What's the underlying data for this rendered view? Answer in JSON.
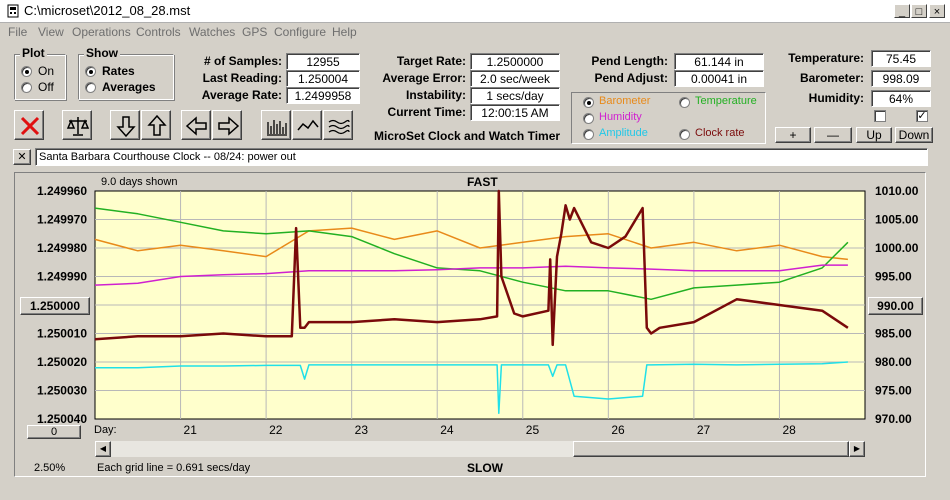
{
  "window": {
    "title": "C:\\microset\\2012_08_28.mst"
  },
  "menu": [
    "File",
    "View",
    "Operations",
    "Controls",
    "Watches",
    "GPS",
    "Configure",
    "Help"
  ],
  "plot_group": {
    "title": "Plot",
    "on": "On",
    "off": "Off",
    "selected": "On"
  },
  "show_group": {
    "title": "Show",
    "rates": "Rates",
    "averages": "Averages",
    "selected": "Rates"
  },
  "stats": {
    "samples_label": "# of Samples:",
    "samples": "12955",
    "last_label": "Last Reading:",
    "last": "1.250004",
    "avg_label": "Average Rate:",
    "avg": "1.2499958",
    "target_label": "Target Rate:",
    "target": "1.2500000",
    "avgerr_label": "Average Error:",
    "avgerr": "2.0 sec/week",
    "instab_label": "Instability:",
    "instab": "1 secs/day",
    "time_label": "Current Time:",
    "time": "12:00:15 AM",
    "pendlen_label": "Pend Length:",
    "pendlen": "61.144 in",
    "pendadj_label": "Pend Adjust:",
    "pendadj": "0.00041 in",
    "temp_label": "Temperature:",
    "temp": "75.45",
    "baro_label": "Barometer:",
    "baro": "998.09",
    "hum_label": "Humidity:",
    "hum": "64%"
  },
  "app_caption": "MicroSet Clock and Watch Timer",
  "channels": {
    "barometer": "Barometer",
    "temperature": "Temperature",
    "humidity": "Humidity",
    "amplitude": "Amplitude",
    "clock_rate": "Clock rate",
    "selected": "Barometer"
  },
  "side_buttons": {
    "plus": "+",
    "minus": "—",
    "up": "Up",
    "down": "Down"
  },
  "note": "Santa Barbara Courthouse Clock  --  08/24: power out",
  "chart_header": {
    "days_shown": "9.0 days shown",
    "top": "FAST",
    "bottom": "SLOW",
    "center_button": "1.250000",
    "right_button": "990.00",
    "scroll_button": "0",
    "percent": "2.50%",
    "grid_note": "Each grid line = 0.691 secs/day",
    "day_label": "Day:"
  },
  "icons": [
    "close-x-icon",
    "balance-scale-icon",
    "arrow-down-icon",
    "arrow-up-icon",
    "arrow-left-icon",
    "arrow-right-icon",
    "bar-chart-icon",
    "wave-icon",
    "multi-wave-icon"
  ],
  "colors": {
    "rate": "#7a0a0a",
    "barometer": "#e88a1a",
    "temperature": "#22b022",
    "humidity": "#d020d0",
    "amplitude": "#20e0e8",
    "plot_bg": "#ffffcc"
  },
  "chart_data": {
    "type": "line",
    "title": "",
    "ylabel_left_ticks": [
      "1.249960",
      "1.249970",
      "1.249980",
      "1.249990",
      "1.250000",
      "1.250010",
      "1.250020",
      "1.250030",
      "1.250040"
    ],
    "ylabel_right_ticks": [
      "1010.00",
      "1005.00",
      "1000.00",
      "995.00",
      "990.00",
      "985.00",
      "980.00",
      "975.00",
      "970.00"
    ],
    "x_ticks": [
      "21",
      "22",
      "23",
      "24",
      "25",
      "26",
      "27",
      "28"
    ],
    "xlim": [
      20.0,
      29.0
    ],
    "ylim_left": [
      1.24996,
      1.25004
    ],
    "ylim_right": [
      970,
      1010
    ],
    "series": [
      {
        "name": "Barometer",
        "color": "#e88a1a",
        "x": [
          20.0,
          20.5,
          21.0,
          21.5,
          22.0,
          22.5,
          23.0,
          23.5,
          24.0,
          24.5,
          25.0,
          25.5,
          26.0,
          26.5,
          27.0,
          27.5,
          28.0,
          28.5,
          28.8
        ],
        "y": [
          1001.5,
          999.5,
          1000.5,
          999.5,
          998.5,
          1003,
          1003.5,
          1001.5,
          1003,
          1000,
          1001,
          1002,
          1002.5,
          1000,
          1001,
          999.5,
          1000.5,
          998.5,
          998
        ]
      },
      {
        "name": "Temperature",
        "color": "#22b022",
        "x": [
          20.0,
          20.5,
          21.0,
          21.5,
          22.0,
          22.5,
          23.0,
          23.5,
          24.0,
          24.5,
          25.0,
          25.5,
          26.0,
          26.5,
          27.0,
          27.5,
          28.0,
          28.5,
          28.8
        ],
        "y": [
          1007,
          1006,
          1004.5,
          1003,
          1002.5,
          1003,
          1002,
          999,
          996.5,
          996,
          994,
          992.5,
          992.5,
          991,
          993,
          993.5,
          994,
          996.5,
          1001
        ]
      },
      {
        "name": "Humidity",
        "color": "#d020d0",
        "x": [
          20.0,
          20.5,
          21.0,
          21.5,
          22.0,
          22.5,
          23.0,
          23.5,
          24.0,
          24.5,
          25.0,
          25.5,
          26.0,
          26.5,
          27.0,
          27.5,
          28.0,
          28.5,
          28.8
        ],
        "y": [
          993.5,
          993.8,
          995,
          995.3,
          995.5,
          996,
          996,
          996,
          996.2,
          996.5,
          996.5,
          996.8,
          996.5,
          996.3,
          996,
          996,
          996,
          997,
          997
        ]
      },
      {
        "name": "Amplitude",
        "color": "#20e0e8",
        "x": [
          20.0,
          20.5,
          21.0,
          21.5,
          22.0,
          22.4,
          22.45,
          22.5,
          23.0,
          23.5,
          24.0,
          24.5,
          24.7,
          24.72,
          24.75,
          25.0,
          25.3,
          25.35,
          25.4,
          25.5,
          25.6,
          26.0,
          26.4,
          26.45,
          26.5,
          27.0,
          27.5,
          28.0,
          28.5,
          28.8
        ],
        "y": [
          979,
          979,
          979.3,
          979.3,
          979.4,
          979.4,
          977,
          979.5,
          979.5,
          979.5,
          979.5,
          979.5,
          979.5,
          971,
          979.5,
          979.5,
          979.5,
          977.5,
          979.5,
          979.5,
          974,
          973.5,
          974,
          979.5,
          979.5,
          979.6,
          979.5,
          979.6,
          979.7,
          980
        ]
      },
      {
        "name": "Clock rate",
        "color": "#7a0a0a",
        "x": [
          20.0,
          20.5,
          21.0,
          21.5,
          22.0,
          22.3,
          22.35,
          22.4,
          22.45,
          22.5,
          23.0,
          23.5,
          24.0,
          24.5,
          24.7,
          24.72,
          24.75,
          24.9,
          25.0,
          25.3,
          25.32,
          25.35,
          25.4,
          25.45,
          25.5,
          25.55,
          25.6,
          25.8,
          26.0,
          26.2,
          26.4,
          26.45,
          26.5,
          26.6,
          27.0,
          27.5,
          28.0,
          28.5,
          28.8
        ],
        "y": [
          1.250012,
          1.250011,
          1.250011,
          1.25001,
          1.250011,
          1.250011,
          1.249973,
          1.250008,
          1.250008,
          1.250006,
          1.250006,
          1.250005,
          1.250006,
          1.250005,
          1.250004,
          1.24996,
          1.24999,
          1.250003,
          1.250004,
          1.250002,
          1.249984,
          1.250014,
          1.249983,
          1.249975,
          1.249965,
          1.24997,
          1.249966,
          1.249978,
          1.24998,
          1.249976,
          1.249966,
          1.250008,
          1.25001,
          1.250008,
          1.250006,
          1.249998,
          1.25,
          1.250002,
          1.250008
        ]
      }
    ]
  }
}
